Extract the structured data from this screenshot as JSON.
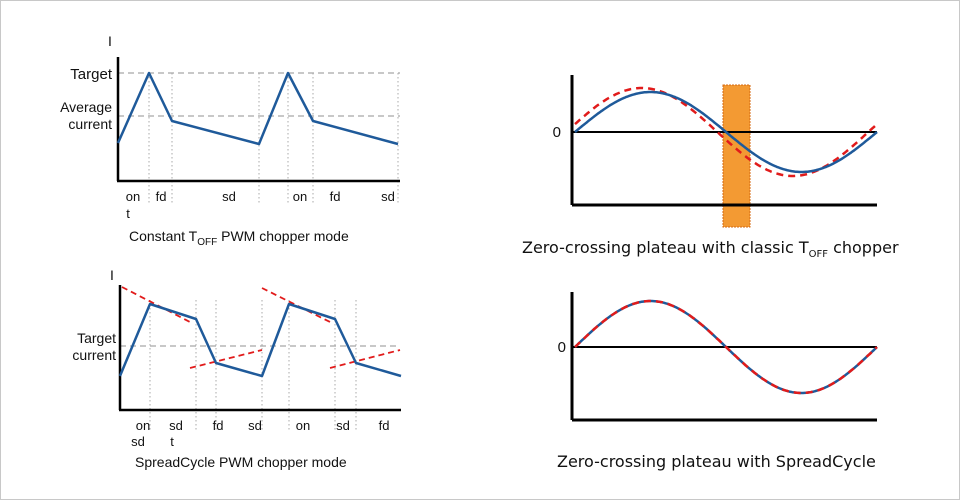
{
  "colors": {
    "waveform": "#1f5a9a",
    "reference": "#e11b1b",
    "grid": "#a8a8a8",
    "axis": "#000000",
    "plateau": "#f39a33"
  },
  "top_left": {
    "y_axis": "I",
    "target_label": "Target",
    "average_label_line1": "Average",
    "average_label_line2": "current",
    "phases": [
      "on",
      "fd",
      "sd",
      "on",
      "fd",
      "sd"
    ],
    "phase_wrap": "t",
    "caption_pre": "Constant T",
    "caption_sub": "OFF",
    "caption_post": " PWM chopper mode"
  },
  "bottom_left": {
    "y_axis": "I",
    "target_label_line1": "Target",
    "target_label_line2": "current",
    "phases_row1": [
      "on",
      "sd",
      "fd",
      "sd",
      "on",
      "sd",
      "fd"
    ],
    "phases_row2": [
      "sd",
      "t"
    ],
    "caption": "SpreadCycle PWM chopper mode"
  },
  "top_right": {
    "zero_label": "0",
    "caption_pre": "Zero-crossing plateau with classic T",
    "caption_sub": "OFF",
    "caption_post": " chopper"
  },
  "bottom_right": {
    "zero_label": "0",
    "caption": "Zero-crossing plateau with SpreadCycle"
  }
}
